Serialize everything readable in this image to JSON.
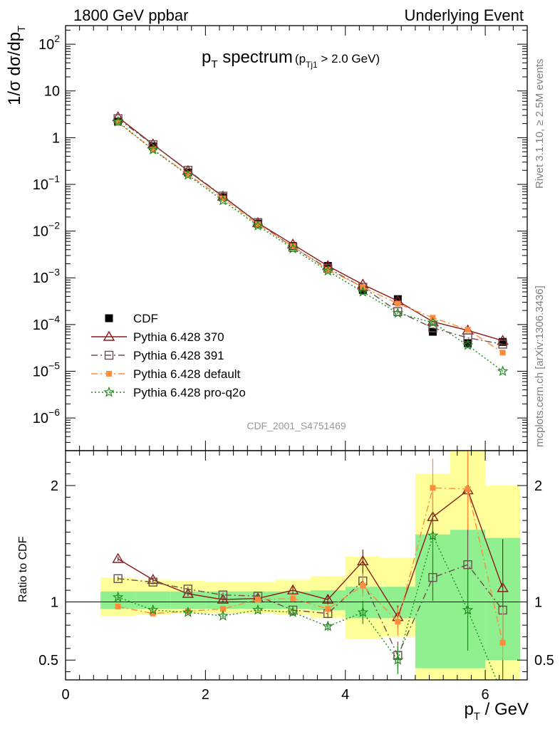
{
  "header": {
    "left": "1800 GeV ppbar",
    "right": "Underlying Event"
  },
  "side": {
    "rivet": "Rivet 3.1.10, ≥ 2.5M events",
    "mcplots": "mcplots.cern.ch [arXiv:1306.3436]"
  },
  "analysis_id": "CDF_2001_S4751469",
  "colors": {
    "CDF": "#000000",
    "Pythia 6.428 370": "#8b1a1a",
    "Pythia 6.428 391": "#6b4e4e",
    "Pythia 6.428 default": "#ff8c3c",
    "Pythia 6.428 pro-q2o": "#1e8b1e",
    "band_inner": "#90f090",
    "band_outer": "#ffff99"
  },
  "chart_data": [
    {
      "type": "line",
      "title": "p_T spectrum (p_Tj1 > 2.0 GeV)",
      "title_main": "p",
      "title_main_sub": "T",
      "title_main_rest": " spectrum",
      "title_cut": "(p",
      "title_cut_sub": "Tj1",
      "title_cut_rest": " > 2.0 GeV)",
      "xlabel": "p_T / GeV",
      "xlabel_main": "p",
      "xlabel_sub": "T",
      "xlabel_rest": " / GeV",
      "ylabel": "1/σ dσ/dp_T",
      "ylabel_main": "1/σ dσ/dp",
      "ylabel_sub": "T",
      "yscale": "log",
      "xlim": [
        0,
        6.6
      ],
      "ylim": [
        2e-07,
        250
      ],
      "y_ticks": [
        {
          "v": 100,
          "b": "10",
          "e": "2"
        },
        {
          "v": 10,
          "b": "10",
          "e": ""
        },
        {
          "v": 1,
          "b": "1",
          "e": ""
        },
        {
          "v": 0.1,
          "b": "10",
          "e": "−1"
        },
        {
          "v": 0.01,
          "b": "10",
          "e": "−2"
        },
        {
          "v": 0.001,
          "b": "10",
          "e": "−3"
        },
        {
          "v": 0.0001,
          "b": "10",
          "e": "−4"
        },
        {
          "v": 1e-05,
          "b": "10",
          "e": "−5"
        },
        {
          "v": 1e-06,
          "b": "10",
          "e": "−6"
        }
      ],
      "x": [
        0.75,
        1.25,
        1.75,
        2.25,
        2.75,
        3.25,
        3.75,
        4.25,
        4.75,
        5.25,
        5.75,
        6.25
      ],
      "legend": {
        "position": "bottom-left",
        "entries": [
          "CDF",
          "Pythia 6.428 370",
          "Pythia 6.428 391",
          "Pythia 6.428 default",
          "Pythia 6.428 pro-q2o"
        ]
      },
      "series": [
        {
          "name": "CDF",
          "marker": "filled-square",
          "values": [
            2.2,
            0.65,
            0.18,
            0.053,
            0.0145,
            0.0048,
            0.0018,
            0.00055,
            0.00035,
            7e-05,
            4e-05,
            4.25e-05
          ]
        },
        {
          "name": "Pythia 6.428 370",
          "marker": "open-triangle",
          "line": "solid",
          "values": [
            2.75,
            0.72,
            0.195,
            0.055,
            0.015,
            0.0052,
            0.0018,
            0.00072,
            0.00032,
            0.000115,
            7.5e-05,
            4.5e-05
          ]
        },
        {
          "name": "Pythia 6.428 391",
          "marker": "open-square",
          "line": "dashdot",
          "values": [
            2.55,
            0.71,
            0.2,
            0.056,
            0.0152,
            0.0045,
            0.0016,
            0.00063,
            0.00019,
            8.5e-05,
            5.2e-05,
            3.8e-05
          ]
        },
        {
          "name": "Pythia 6.428 default",
          "marker": "filled-square-small",
          "line": "dashdot",
          "values": [
            2.1,
            0.56,
            0.165,
            0.05,
            0.014,
            0.0047,
            0.0015,
            0.00063,
            0.00028,
            0.00014,
            7.8e-05,
            2.5e-05
          ]
        },
        {
          "name": "Pythia 6.428 pro-q2o",
          "marker": "star",
          "line": "dotted",
          "values": [
            2.2,
            0.55,
            0.158,
            0.045,
            0.013,
            0.0042,
            0.0014,
            0.0005,
            0.000175,
            0.00011,
            3.6e-05,
            1e-05
          ]
        }
      ]
    },
    {
      "type": "line",
      "ylabel": "Ratio to CDF",
      "xlim": [
        0,
        6.6
      ],
      "ylim": [
        0.33,
        2.3
      ],
      "x_ticks": [
        0,
        2,
        4,
        6
      ],
      "y_ticks": [
        0.5,
        1,
        2
      ],
      "x": [
        0.75,
        1.25,
        1.75,
        2.25,
        2.75,
        3.25,
        3.75,
        4.25,
        4.75,
        5.25,
        5.75,
        6.25
      ],
      "bands": {
        "edges": [
          0.5,
          1.0,
          1.5,
          2.0,
          2.5,
          3.0,
          3.5,
          4.0,
          4.5,
          5.0,
          5.5,
          6.0,
          6.5
        ],
        "inner": [
          [
            0.94,
            1.09
          ],
          [
            0.94,
            1.09
          ],
          [
            0.94,
            1.09
          ],
          [
            0.94,
            1.09
          ],
          [
            0.94,
            1.09
          ],
          [
            0.94,
            1.09
          ],
          [
            0.93,
            1.1
          ],
          [
            0.86,
            1.13
          ],
          [
            0.86,
            1.13
          ],
          [
            0.43,
            1.58
          ],
          [
            0.43,
            1.62
          ],
          [
            0.5,
            1.55
          ]
        ],
        "outer": [
          [
            0.88,
            1.21
          ],
          [
            0.89,
            1.19
          ],
          [
            0.9,
            1.18
          ],
          [
            0.9,
            1.17
          ],
          [
            0.9,
            1.17
          ],
          [
            0.89,
            1.19
          ],
          [
            0.86,
            1.22
          ],
          [
            0.68,
            1.39
          ],
          [
            0.7,
            1.38
          ],
          [
            0.33,
            2.1
          ],
          [
            0.33,
            2.3
          ],
          [
            0.33,
            2.0
          ]
        ]
      },
      "series": [
        {
          "name": "Pythia 6.428 370",
          "values": [
            1.37,
            1.19,
            1.07,
            1.02,
            1.03,
            1.1,
            1.02,
            1.35,
            0.87,
            1.73,
            1.96,
            1.12
          ],
          "err": [
            0.02,
            0.02,
            0.02,
            0.02,
            0.02,
            0.03,
            0.04,
            0.1,
            0.1,
            0.2,
            0.35,
            0.42
          ]
        },
        {
          "name": "Pythia 6.428 391",
          "values": [
            1.2,
            1.17,
            1.11,
            1.06,
            1.05,
            0.93,
            0.9,
            1.18,
            0.54,
            1.21,
            1.32,
            0.93
          ],
          "err": [
            0.02,
            0.02,
            0.02,
            0.02,
            0.02,
            0.03,
            0.04,
            0.1,
            0.12,
            0.2,
            0.35,
            0.3
          ]
        },
        {
          "name": "Pythia 6.428 default",
          "values": [
            0.96,
            0.9,
            0.92,
            0.94,
            1.02,
            1.03,
            0.94,
            1.14,
            0.83,
            1.98,
            1.97,
            0.65
          ],
          "err": [
            0.02,
            0.02,
            0.02,
            0.02,
            0.02,
            0.03,
            0.04,
            0.1,
            0.12,
            0.25,
            0.35,
            0.3
          ]
        },
        {
          "name": "Pythia 6.428 pro-q2o",
          "values": [
            1.04,
            0.93,
            0.91,
            0.88,
            0.93,
            0.91,
            0.79,
            0.91,
            0.5,
            1.57,
            0.93,
            0.2
          ],
          "err": [
            0.02,
            0.02,
            0.02,
            0.02,
            0.02,
            0.03,
            0.04,
            0.1,
            0.12,
            0.2,
            0.35,
            0.3
          ]
        }
      ]
    }
  ]
}
